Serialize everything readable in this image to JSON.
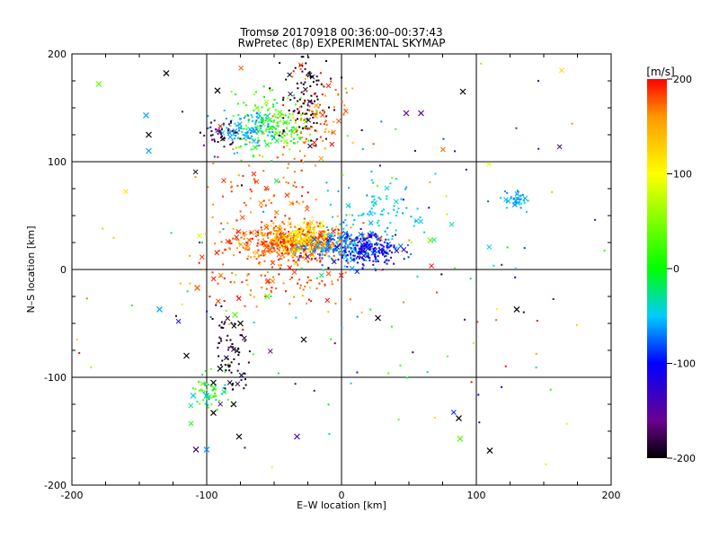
{
  "chart_data": {
    "type": "scatter",
    "title": "Tromsø 20170918 00:36:00–00:37:43",
    "subtitle": "RwPretec (8p) EXPERIMENTAL SKYMAP",
    "xlabel": "E–W location [km]",
    "ylabel": "N–S location [km]",
    "xlim": [
      -200,
      200
    ],
    "ylim": [
      -200,
      200
    ],
    "xticks": [
      -200,
      -100,
      0,
      100,
      200
    ],
    "yticks": [
      -200,
      -100,
      0,
      100,
      200
    ],
    "grid": true,
    "colorbar": {
      "label": "[m/s]",
      "min": -200,
      "max": 200,
      "ticks": [
        200,
        100,
        0,
        -100,
        -200
      ],
      "stops": [
        {
          "v": -200,
          "c": "#000000"
        },
        {
          "v": -160,
          "c": "#6a0090"
        },
        {
          "v": -100,
          "c": "#0000ff"
        },
        {
          "v": -50,
          "c": "#00ccff"
        },
        {
          "v": 0,
          "c": "#00ff00"
        },
        {
          "v": 100,
          "c": "#ffff00"
        },
        {
          "v": 160,
          "c": "#ff9900"
        },
        {
          "v": 200,
          "c": "#ff0000"
        }
      ]
    },
    "clusters": [
      {
        "x": -38,
        "y": 25,
        "sx": 22,
        "sy": 8,
        "n": 520,
        "vmin": 150,
        "vmax": 200
      },
      {
        "x": -30,
        "y": 30,
        "sx": 10,
        "sy": 8,
        "n": 160,
        "vmin": 80,
        "vmax": 140
      },
      {
        "x": 8,
        "y": 20,
        "sx": 16,
        "sy": 8,
        "n": 240,
        "vmin": -90,
        "vmax": -40
      },
      {
        "x": 20,
        "y": 18,
        "sx": 10,
        "sy": 7,
        "n": 150,
        "vmin": -130,
        "vmax": -100
      },
      {
        "x": -50,
        "y": 135,
        "sx": 15,
        "sy": 14,
        "n": 180,
        "vmin": -20,
        "vmax": 60
      },
      {
        "x": -70,
        "y": 130,
        "sx": 12,
        "sy": 8,
        "n": 100,
        "vmin": -70,
        "vmax": -40
      },
      {
        "x": -90,
        "y": 125,
        "sx": 6,
        "sy": 6,
        "n": 40,
        "vmin": -200,
        "vmax": -160
      },
      {
        "x": -25,
        "y": 160,
        "sx": 10,
        "sy": 18,
        "n": 100,
        "vmin": -200,
        "vmax": -180
      },
      {
        "x": -20,
        "y": 140,
        "sx": 12,
        "sy": 20,
        "n": 90,
        "vmin": 150,
        "vmax": 200
      },
      {
        "x": -55,
        "y": 60,
        "sx": 22,
        "sy": 25,
        "n": 100,
        "vmin": 150,
        "vmax": 200
      },
      {
        "x": 30,
        "y": 55,
        "sx": 25,
        "sy": 15,
        "n": 80,
        "vmin": -60,
        "vmax": -30
      },
      {
        "x": 130,
        "y": 65,
        "sx": 5,
        "sy": 5,
        "n": 40,
        "vmin": -70,
        "vmax": -40
      },
      {
        "x": -82,
        "y": -75,
        "sx": 6,
        "sy": 20,
        "n": 70,
        "vmin": -200,
        "vmax": -180
      },
      {
        "x": -98,
        "y": -115,
        "sx": 6,
        "sy": 10,
        "n": 60,
        "vmin": -60,
        "vmax": 60
      },
      {
        "x": -40,
        "y": -10,
        "sx": 30,
        "sy": 15,
        "n": 90,
        "vmin": 160,
        "vmax": 200
      },
      {
        "x": 0,
        "y": 0,
        "sx": 110,
        "sy": 110,
        "n": 200,
        "vmin": -200,
        "vmax": 200
      }
    ],
    "marker_shape": "x",
    "x_marker_points": [
      [
        -180,
        172,
        40
      ],
      [
        -92,
        166,
        -200
      ],
      [
        -143,
        125,
        -200
      ],
      [
        -130,
        182,
        -200
      ],
      [
        -145,
        143,
        -60
      ],
      [
        -143,
        110,
        -60
      ],
      [
        -115,
        -80,
        -200
      ],
      [
        -108,
        -167,
        -170
      ],
      [
        -100,
        -167,
        -60
      ],
      [
        -76,
        -155,
        -200
      ],
      [
        -33,
        -155,
        -150
      ],
      [
        -28,
        -65,
        -200
      ],
      [
        27,
        -45,
        -200
      ],
      [
        130,
        -37,
        -200
      ],
      [
        87,
        -138,
        -200
      ],
      [
        110,
        -168,
        -200
      ],
      [
        90,
        165,
        -200
      ],
      [
        48,
        145,
        -160
      ],
      [
        59,
        145,
        -150
      ],
      [
        66,
        27,
        40
      ],
      [
        -135,
        -37,
        -60
      ],
      [
        -107,
        -17,
        180
      ],
      [
        -75,
        -50,
        -200
      ],
      [
        -90,
        -92,
        -200
      ],
      [
        -95,
        -105,
        -200
      ],
      [
        -80,
        -125,
        -200
      ],
      [
        -100,
        -117,
        -50
      ],
      [
        -95,
        -133,
        -200
      ],
      [
        -110,
        -117,
        -40
      ],
      [
        88,
        -157,
        30
      ],
      [
        -79,
        -42,
        30
      ],
      [
        -55,
        -25,
        30
      ]
    ]
  }
}
